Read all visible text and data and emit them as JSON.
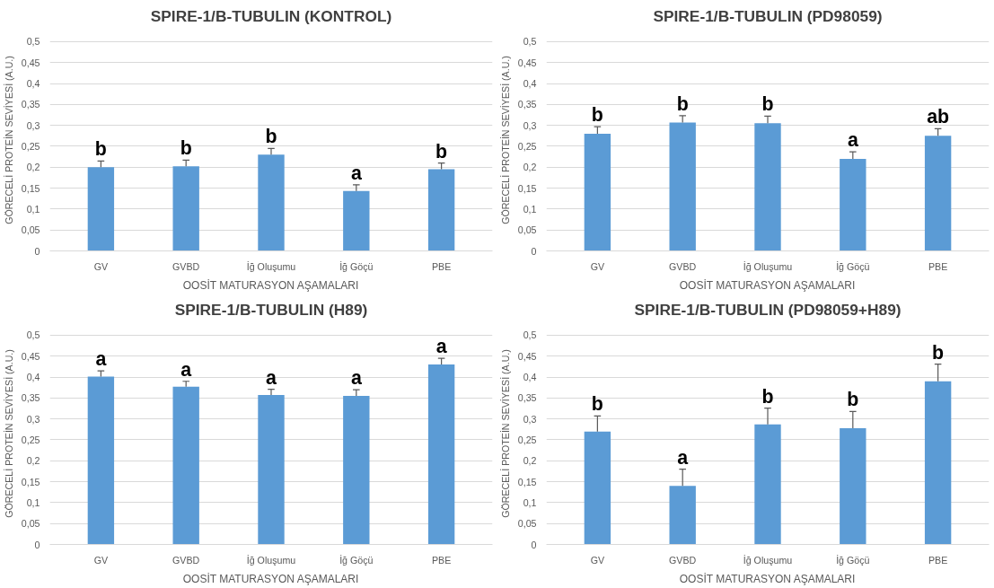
{
  "chart_data": [
    {
      "type": "bar",
      "title": "SPIRE-1/B-TUBULIN (KONTROL)",
      "xlabel": "OOSİT MATURASYON AŞAMALARI",
      "ylabel": "GÖRECELİ PROTEİN SEVİYESİ (A.U.)",
      "categories": [
        "GV",
        "GVBD",
        "İğ Oluşumu",
        "İğ Göçü",
        "PBE"
      ],
      "color": "#5b9bd5",
      "values": [
        0.2,
        0.202,
        0.23,
        0.143,
        0.195
      ],
      "errors": [
        [
          0.2,
          0.215
        ],
        [
          0.202,
          0.217
        ],
        [
          0.23,
          0.245
        ],
        [
          0.143,
          0.158
        ],
        [
          0.195,
          0.21
        ]
      ],
      "value_labels": [
        "b",
        "b",
        "b",
        "a",
        "b"
      ],
      "ylim": [
        0,
        0.5
      ],
      "yticks": [
        0,
        {
          "value": 0.05,
          "label": "0,05"
        },
        {
          "value": 0.1,
          "label": "0,1"
        },
        {
          "value": 0.15,
          "label": "0,15"
        },
        {
          "value": 0.2,
          "label": "0,2"
        },
        {
          "value": 0.25,
          "label": "0,25"
        },
        {
          "value": 0.3,
          "label": "0,3"
        },
        {
          "value": 0.35,
          "label": "0,35"
        },
        {
          "value": 0.4,
          "label": "0,4"
        },
        {
          "value": 0.45,
          "label": "0,45"
        },
        {
          "value": 0.5,
          "label": "0,5"
        }
      ],
      "grid": "y"
    },
    {
      "type": "bar",
      "title": "SPIRE-1/B-TUBULIN (PD98059)",
      "xlabel": "OOSİT MATURASYON AŞAMALARI",
      "ylabel": "GÖRECELİ PROTEİN SEVİYESİ (A.U.)",
      "categories": [
        "GV",
        "GVBD",
        "İğ Oluşumu",
        "İğ Göçü",
        "PBE"
      ],
      "color": "#5b9bd5",
      "values": [
        0.28,
        0.307,
        0.305,
        0.22,
        0.275
      ],
      "errors": [
        [
          0.28,
          0.297
        ],
        [
          0.307,
          0.323
        ],
        [
          0.305,
          0.322
        ],
        [
          0.22,
          0.237
        ],
        [
          0.275,
          0.292
        ]
      ],
      "value_labels": [
        "b",
        "b",
        "b",
        "a",
        "ab"
      ],
      "ylim": [
        0,
        0.5
      ],
      "yticks": [
        0,
        {
          "value": 0.05,
          "label": "0,05"
        },
        {
          "value": 0.1,
          "label": "0,1"
        },
        {
          "value": 0.15,
          "label": "0,15"
        },
        {
          "value": 0.2,
          "label": "0,2"
        },
        {
          "value": 0.25,
          "label": "0,25"
        },
        {
          "value": 0.3,
          "label": "0,3"
        },
        {
          "value": 0.35,
          "label": "0,35"
        },
        {
          "value": 0.4,
          "label": "0,4"
        },
        {
          "value": 0.45,
          "label": "0,45"
        },
        {
          "value": 0.5,
          "label": "0,5"
        }
      ],
      "grid": "y"
    },
    {
      "type": "bar",
      "title": "SPIRE-1/B-TUBULIN (H89)",
      "xlabel": "OOSİT MATURASYON AŞAMALARI",
      "ylabel": "GÖRECELİ PROTEİN SEVİYESİ (A.U.)",
      "categories": [
        "GV",
        "GVBD",
        "İğ Oluşumu",
        "İğ Göçü",
        "PBE"
      ],
      "color": "#5b9bd5",
      "values": [
        0.401,
        0.377,
        0.357,
        0.355,
        0.43
      ],
      "errors": [
        [
          0.401,
          0.415
        ],
        [
          0.377,
          0.39
        ],
        [
          0.357,
          0.371
        ],
        [
          0.355,
          0.37
        ],
        [
          0.43,
          0.445
        ]
      ],
      "value_labels": [
        "a",
        "a",
        "a",
        "a",
        "a"
      ],
      "ylim": [
        0,
        0.5
      ],
      "yticks": [
        0,
        {
          "value": 0.05,
          "label": "0,05"
        },
        {
          "value": 0.1,
          "label": "0,1"
        },
        {
          "value": 0.15,
          "label": "0,15"
        },
        {
          "value": 0.2,
          "label": "0,2"
        },
        {
          "value": 0.25,
          "label": "0,25"
        },
        {
          "value": 0.3,
          "label": "0,3"
        },
        {
          "value": 0.35,
          "label": "0,35"
        },
        {
          "value": 0.4,
          "label": "0,4"
        },
        {
          "value": 0.45,
          "label": "0,45"
        },
        {
          "value": 0.5,
          "label": "0,5"
        }
      ],
      "grid": "y"
    },
    {
      "type": "bar",
      "title": "SPIRE-1/B-TUBULIN (PD98059+H89)",
      "xlabel": "OOSİT MATURASYON AŞAMALARI",
      "ylabel": "GÖRECELİ PROTEİN SEVİYESİ (A.U.)",
      "categories": [
        "GV",
        "GVBD",
        "İğ Oluşumu",
        "İğ Göçü",
        "PBE"
      ],
      "color": "#5b9bd5",
      "values": [
        0.27,
        0.14,
        0.287,
        0.278,
        0.39
      ],
      "errors": [
        [
          0.27,
          0.307
        ],
        [
          0.14,
          0.18
        ],
        [
          0.287,
          0.326
        ],
        [
          0.278,
          0.318
        ],
        [
          0.39,
          0.431
        ]
      ],
      "value_labels": [
        "b",
        "a",
        "b",
        "b",
        "b"
      ],
      "ylim": [
        0,
        0.5
      ],
      "yticks": [
        0,
        {
          "value": 0.05,
          "label": "0,05"
        },
        {
          "value": 0.1,
          "label": "0,1"
        },
        {
          "value": 0.15,
          "label": "0,15"
        },
        {
          "value": 0.2,
          "label": "0,2"
        },
        {
          "value": 0.25,
          "label": "0,25"
        },
        {
          "value": 0.3,
          "label": "0,3"
        },
        {
          "value": 0.35,
          "label": "0,35"
        },
        {
          "value": 0.4,
          "label": "0,4"
        },
        {
          "value": 0.45,
          "label": "0,45"
        },
        {
          "value": 0.5,
          "label": "0,5"
        }
      ],
      "grid": "y"
    }
  ]
}
